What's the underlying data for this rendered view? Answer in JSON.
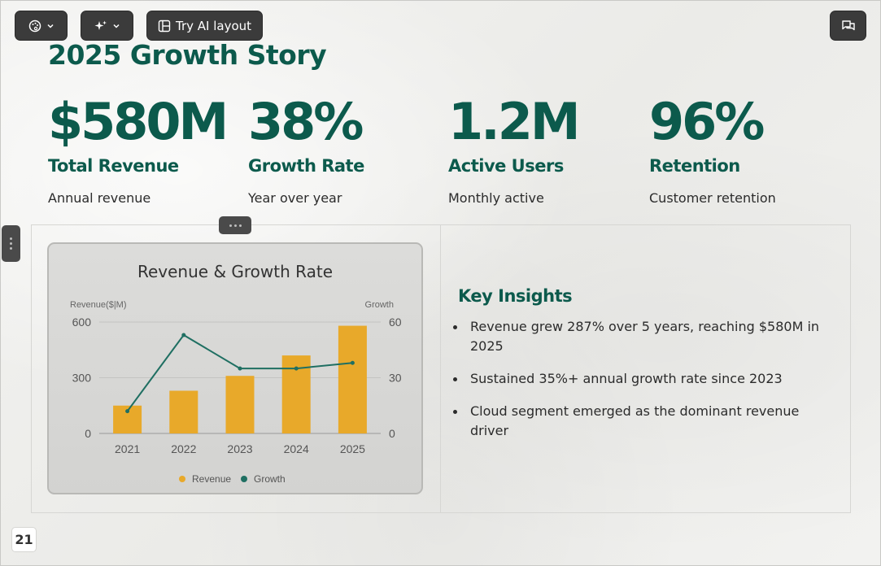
{
  "toolbar": {
    "theme_icon": "palette-icon",
    "ai_icon": "sparkles-icon",
    "layout_icon": "layout-icon",
    "layout_label": "Try AI layout",
    "comment_icon": "comments-icon"
  },
  "slide": {
    "title": "2025 Growth Story",
    "stats": [
      {
        "value": "$580M",
        "label": "Total Revenue",
        "desc": "Annual revenue"
      },
      {
        "value": "38%",
        "label": "Growth Rate",
        "desc": "Year over year"
      },
      {
        "value": "1.2M",
        "label": "Active Users",
        "desc": "Monthly active"
      },
      {
        "value": "96%",
        "label": "Retention",
        "desc": "Customer retention"
      }
    ],
    "insights": {
      "title": "Key Insights",
      "items": [
        "Revenue grew 287% over 5 years, reaching $580M in 2025",
        "Sustained 35%+ annual growth rate since 2023",
        "Cloud segment emerged as the dominant revenue driver"
      ]
    },
    "page_number": "21"
  },
  "colors": {
    "accent": "#0c5a4c",
    "bar": "#e8a92a",
    "line": "#1f6f62"
  },
  "chart_data": {
    "type": "bar",
    "title": "Revenue & Growth Rate",
    "categories": [
      "2021",
      "2022",
      "2023",
      "2024",
      "2025"
    ],
    "y_left_label": "Revenue($|M)",
    "y_right_label": "Growth",
    "y_left_ticks": [
      "0",
      "300",
      "600"
    ],
    "y_right_ticks": [
      "0",
      "30",
      "60"
    ],
    "ylim_left": [
      0,
      600
    ],
    "ylim_right": [
      0,
      60
    ],
    "series": [
      {
        "name": "Revenue",
        "type": "bar",
        "axis": "left",
        "values": [
          150,
          230,
          310,
          420,
          580
        ]
      },
      {
        "name": "Growth",
        "type": "line",
        "axis": "right",
        "values": [
          12,
          53,
          35,
          35,
          38
        ]
      }
    ],
    "legend": "bottom",
    "grid": true
  }
}
